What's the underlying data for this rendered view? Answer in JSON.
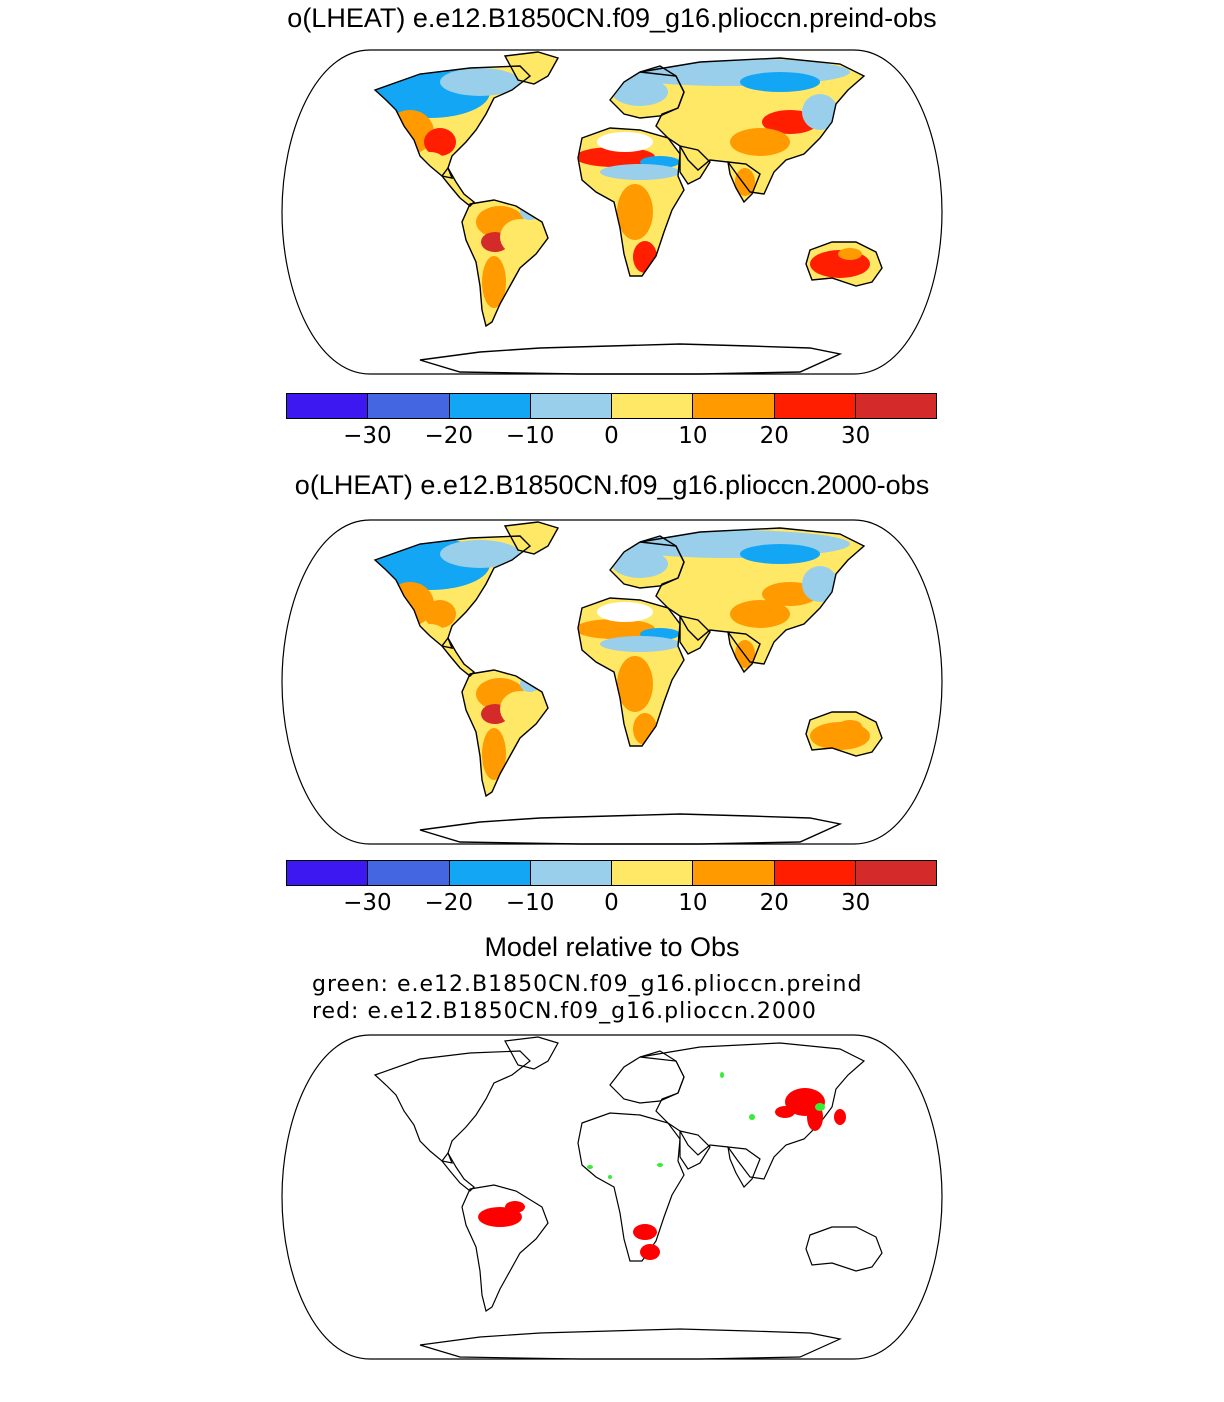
{
  "panels": [
    {
      "title": "o(LHEAT) e.e12.B1850CN.f09_g16.plioccn.preind-obs"
    },
    {
      "title": "o(LHEAT) e.e12.B1850CN.f09_g16.plioccn.2000-obs"
    }
  ],
  "colorbar": {
    "colors": [
      "#3d18f0",
      "#4466e0",
      "#12a6f5",
      "#99cfeb",
      "#ffe866",
      "#ff9a00",
      "#ff1e00",
      "#d42a2a"
    ],
    "tick_labels": [
      "−30",
      "−20",
      "−10",
      "0",
      "10",
      "20",
      "30"
    ]
  },
  "comparison": {
    "title": "Model relative to Obs",
    "legend_green": "green: e.e12.B1850CN.f09_g16.plioccn.preind",
    "legend_red": "red: e.e12.B1850CN.f09_g16.plioccn.2000",
    "green_color": "#33ee33",
    "red_color": "#ff0000"
  }
}
